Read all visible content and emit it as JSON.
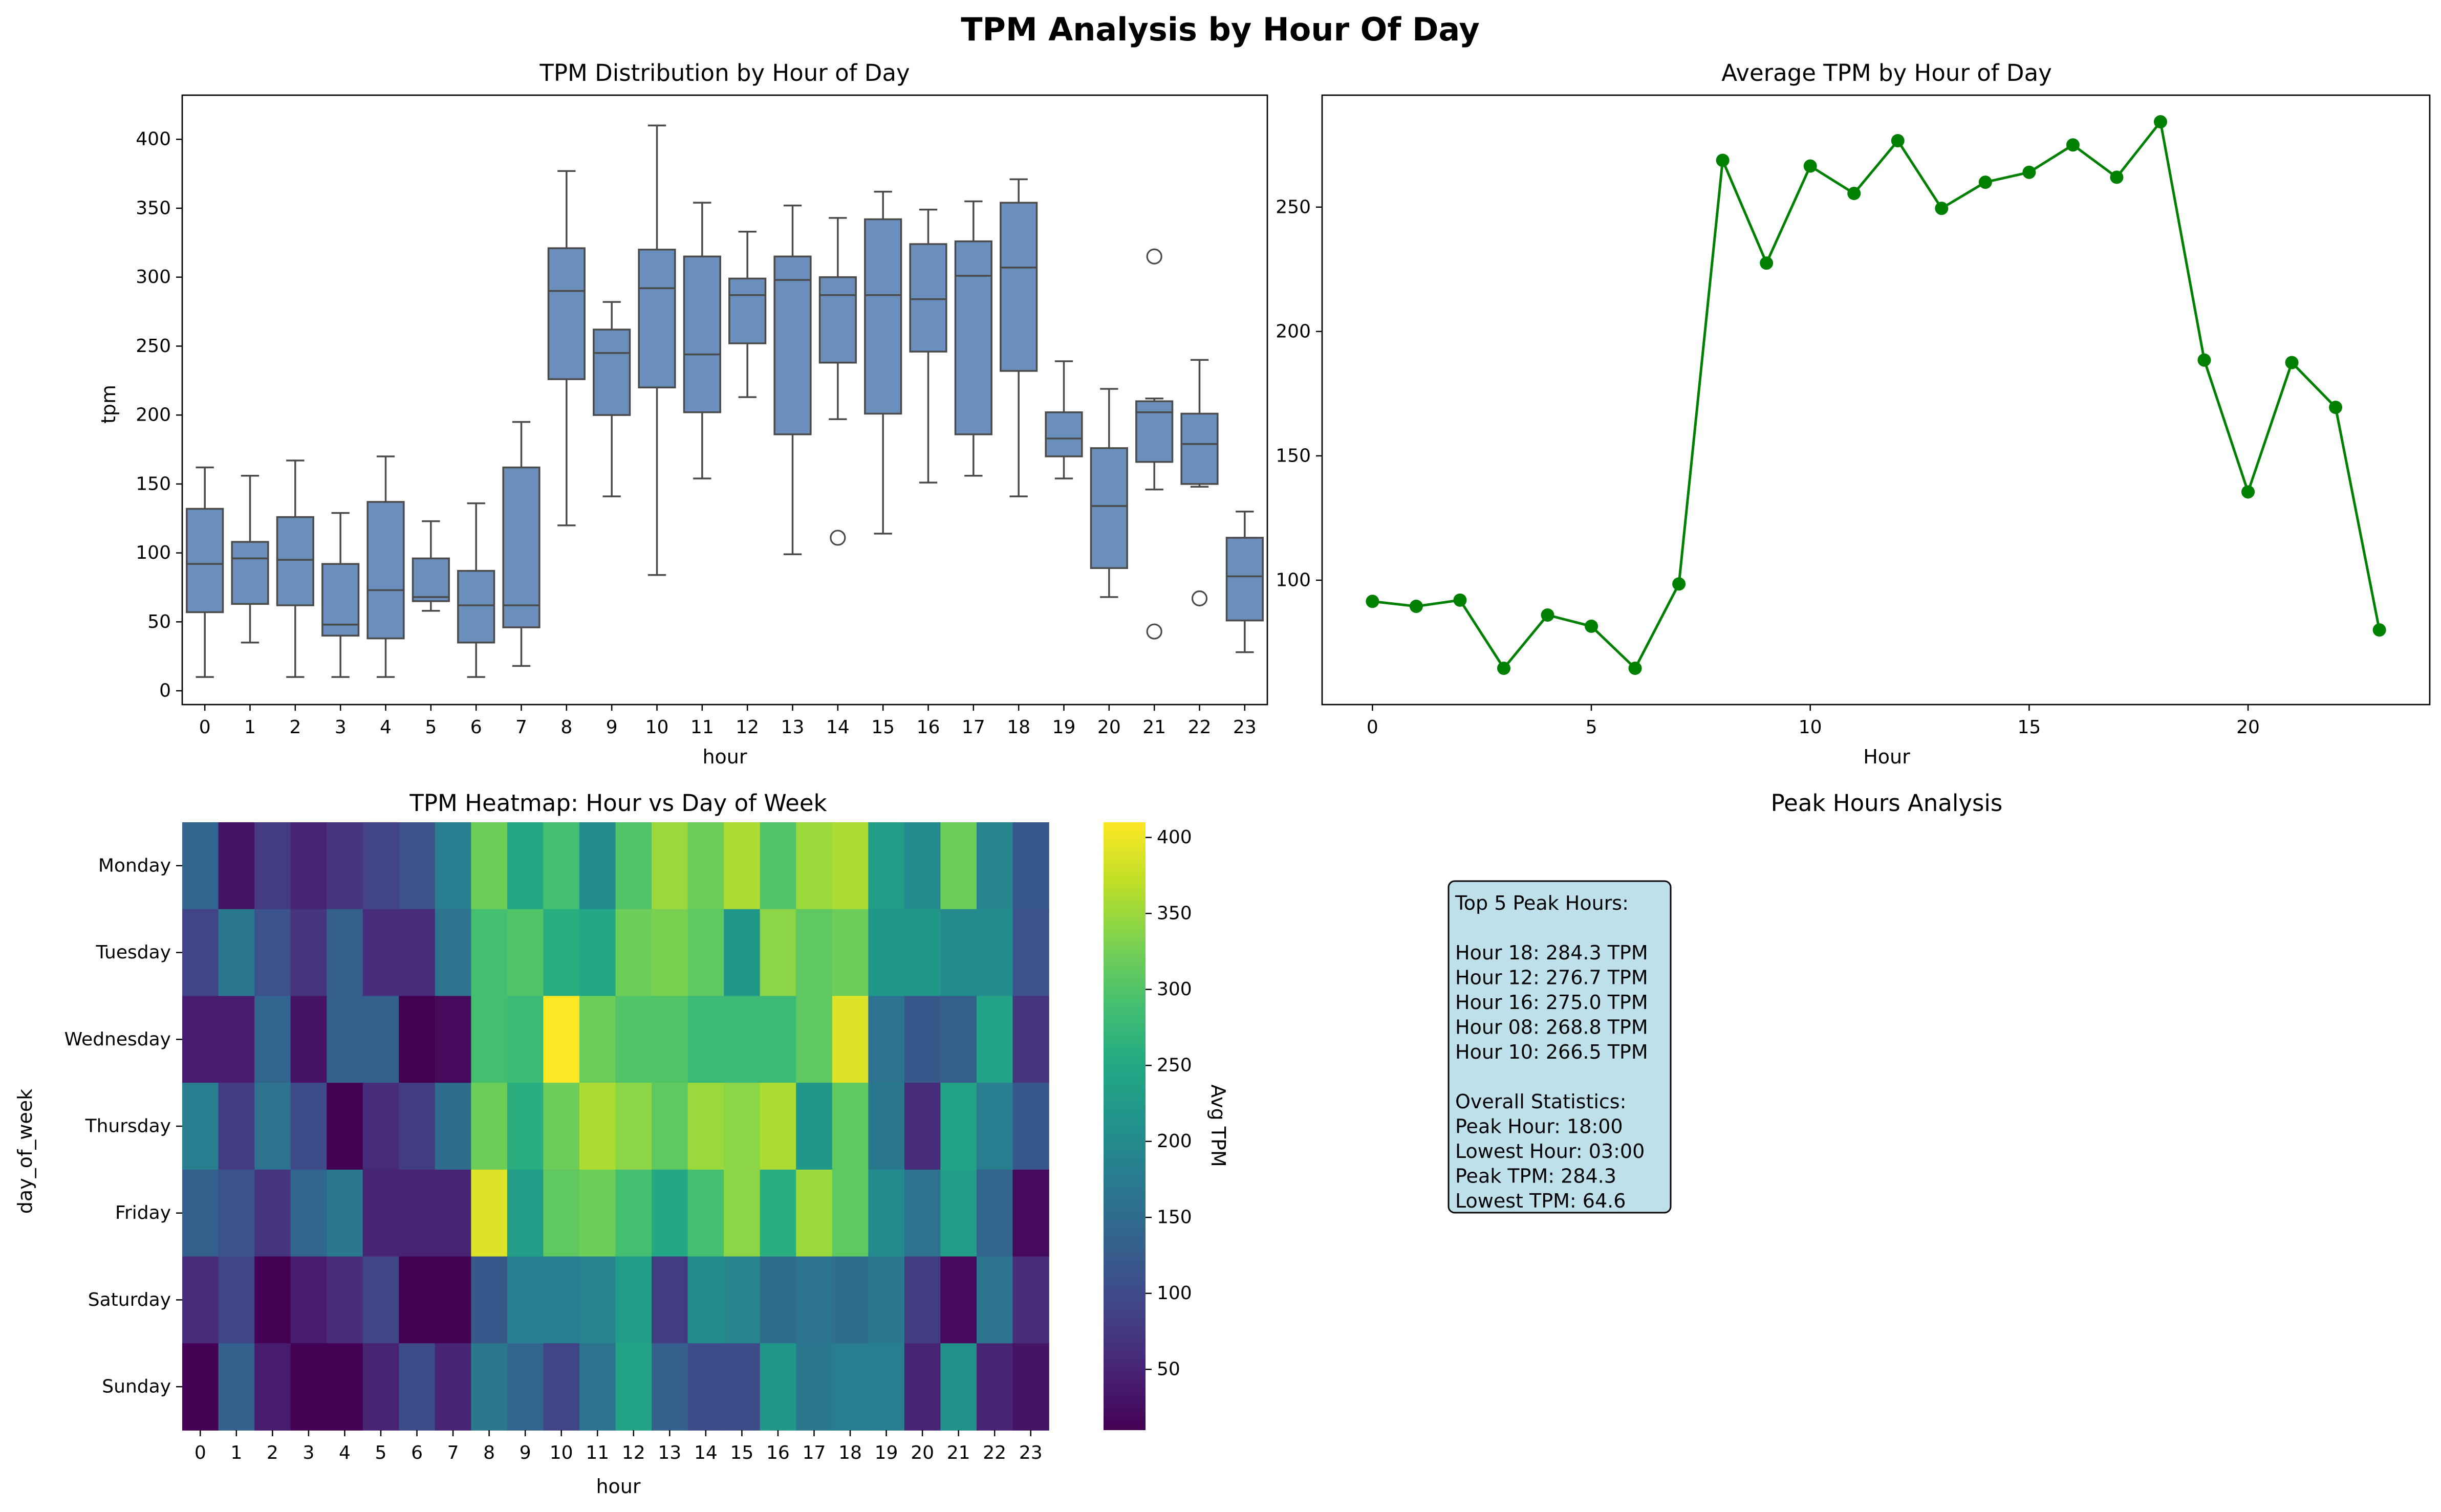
{
  "figure": {
    "title": "TPM Analysis by Hour Of Day"
  },
  "colors": {
    "box_fill": "#6a8fbd",
    "box_edge": "#4a4a4a",
    "line": "#008000",
    "stats_box": "#add8e6",
    "colormap": "viridis"
  },
  "chart_data": [
    {
      "type": "box",
      "title": "TPM Distribution by Hour of Day",
      "xlabel": "hour",
      "ylabel": "tpm",
      "ylim": [
        -10,
        432
      ],
      "yticks": [
        0,
        50,
        100,
        150,
        200,
        250,
        300,
        350,
        400
      ],
      "categories": [
        "0",
        "1",
        "2",
        "3",
        "4",
        "5",
        "6",
        "7",
        "8",
        "9",
        "10",
        "11",
        "12",
        "13",
        "14",
        "15",
        "16",
        "17",
        "18",
        "19",
        "20",
        "21",
        "22",
        "23"
      ],
      "boxes": [
        {
          "min": 10,
          "q1": 57,
          "median": 92,
          "q3": 132,
          "max": 162,
          "outliers": []
        },
        {
          "min": 35,
          "q1": 63,
          "median": 96,
          "q3": 108,
          "max": 156,
          "outliers": []
        },
        {
          "min": 10,
          "q1": 62,
          "median": 95,
          "q3": 126,
          "max": 167,
          "outliers": []
        },
        {
          "min": 10,
          "q1": 40,
          "median": 48,
          "q3": 92,
          "max": 129,
          "outliers": []
        },
        {
          "min": 10,
          "q1": 38,
          "median": 73,
          "q3": 137,
          "max": 170,
          "outliers": []
        },
        {
          "min": 58,
          "q1": 65,
          "median": 68,
          "q3": 96,
          "max": 123,
          "outliers": []
        },
        {
          "min": 10,
          "q1": 35,
          "median": 62,
          "q3": 87,
          "max": 136,
          "outliers": []
        },
        {
          "min": 18,
          "q1": 46,
          "median": 62,
          "q3": 162,
          "max": 195,
          "outliers": []
        },
        {
          "min": 120,
          "q1": 226,
          "median": 290,
          "q3": 321,
          "max": 377,
          "outliers": []
        },
        {
          "min": 141,
          "q1": 200,
          "median": 245,
          "q3": 262,
          "max": 282,
          "outliers": []
        },
        {
          "min": 84,
          "q1": 220,
          "median": 292,
          "q3": 320,
          "max": 410,
          "outliers": []
        },
        {
          "min": 154,
          "q1": 202,
          "median": 244,
          "q3": 315,
          "max": 354,
          "outliers": []
        },
        {
          "min": 213,
          "q1": 252,
          "median": 287,
          "q3": 299,
          "max": 333,
          "outliers": []
        },
        {
          "min": 99,
          "q1": 186,
          "median": 298,
          "q3": 315,
          "max": 352,
          "outliers": []
        },
        {
          "min": 197,
          "q1": 238,
          "median": 287,
          "q3": 300,
          "max": 343,
          "outliers": [
            111
          ]
        },
        {
          "min": 114,
          "q1": 201,
          "median": 287,
          "q3": 342,
          "max": 362,
          "outliers": []
        },
        {
          "min": 151,
          "q1": 246,
          "median": 284,
          "q3": 324,
          "max": 349,
          "outliers": []
        },
        {
          "min": 156,
          "q1": 186,
          "median": 301,
          "q3": 326,
          "max": 355,
          "outliers": []
        },
        {
          "min": 141,
          "q1": 232,
          "median": 307,
          "q3": 354,
          "max": 371,
          "outliers": []
        },
        {
          "min": 154,
          "q1": 170,
          "median": 183,
          "q3": 202,
          "max": 239,
          "outliers": []
        },
        {
          "min": 68,
          "q1": 89,
          "median": 134,
          "q3": 176,
          "max": 219,
          "outliers": []
        },
        {
          "min": 146,
          "q1": 166,
          "median": 202,
          "q3": 210,
          "max": 212,
          "outliers": [
            315,
            43
          ]
        },
        {
          "min": 148,
          "q1": 150,
          "median": 179,
          "q3": 201,
          "max": 240,
          "outliers": [
            67
          ]
        },
        {
          "min": 28,
          "q1": 51,
          "median": 83,
          "q3": 111,
          "max": 130,
          "outliers": []
        }
      ]
    },
    {
      "type": "line",
      "title": "Average TPM by Hour of Day",
      "xlabel": "Hour",
      "ylabel": "",
      "xlim": [
        -1.15,
        24.15
      ],
      "ylim": [
        50,
        295
      ],
      "xticks": [
        0,
        5,
        10,
        15,
        20
      ],
      "yticks": [
        100,
        150,
        200,
        250
      ],
      "x": [
        0,
        1,
        2,
        3,
        4,
        5,
        6,
        7,
        8,
        9,
        10,
        11,
        12,
        13,
        14,
        15,
        16,
        17,
        18,
        19,
        20,
        21,
        22,
        23
      ],
      "y": [
        91.5,
        89.5,
        92.0,
        64.6,
        86.0,
        81.5,
        64.6,
        98.5,
        268.8,
        227.5,
        266.5,
        255.5,
        276.7,
        249.5,
        260.0,
        264.0,
        275.0,
        262.0,
        284.3,
        188.5,
        135.5,
        187.5,
        169.5,
        80.0
      ]
    },
    {
      "type": "heatmap",
      "title": "TPM Heatmap: Hour vs Day of Week",
      "xlabel": "hour",
      "ylabel": "day_of_week",
      "colorbar_label": "Avg TPM",
      "colorbar_ticks": [
        50,
        100,
        150,
        200,
        250,
        300,
        350,
        400
      ],
      "vmin": 10,
      "vmax": 410,
      "x_labels": [
        "0",
        "1",
        "2",
        "3",
        "4",
        "5",
        "6",
        "7",
        "8",
        "9",
        "10",
        "11",
        "12",
        "13",
        "14",
        "15",
        "16",
        "17",
        "18",
        "19",
        "20",
        "21",
        "22",
        "23"
      ],
      "y_labels": [
        "Monday",
        "Tuesday",
        "Wednesday",
        "Thursday",
        "Friday",
        "Saturday",
        "Sunday"
      ],
      "values": [
        [
          140,
          30,
          80,
          50,
          70,
          90,
          110,
          180,
          320,
          250,
          290,
          200,
          300,
          350,
          320,
          360,
          300,
          350,
          360,
          230,
          200,
          320,
          190,
          120
        ],
        [
          90,
          170,
          110,
          70,
          130,
          60,
          60,
          160,
          290,
          300,
          260,
          250,
          320,
          330,
          310,
          220,
          340,
          310,
          320,
          220,
          220,
          200,
          200,
          110
        ],
        [
          40,
          40,
          140,
          30,
          130,
          130,
          10,
          20,
          290,
          280,
          410,
          320,
          300,
          300,
          280,
          280,
          280,
          310,
          390,
          160,
          120,
          130,
          240,
          70
        ],
        [
          180,
          80,
          160,
          100,
          10,
          60,
          80,
          150,
          320,
          260,
          320,
          360,
          340,
          310,
          350,
          340,
          360,
          220,
          310,
          170,
          60,
          240,
          180,
          120
        ],
        [
          130,
          110,
          70,
          140,
          170,
          50,
          50,
          50,
          390,
          230,
          310,
          320,
          290,
          250,
          290,
          340,
          260,
          350,
          310,
          200,
          160,
          230,
          140,
          20
        ],
        [
          60,
          90,
          10,
          40,
          60,
          90,
          10,
          10,
          120,
          180,
          180,
          190,
          230,
          80,
          200,
          190,
          150,
          160,
          150,
          170,
          80,
          20,
          160,
          60
        ],
        [
          10,
          130,
          40,
          10,
          10,
          50,
          100,
          50,
          170,
          140,
          90,
          160,
          240,
          130,
          100,
          100,
          220,
          170,
          180,
          180,
          50,
          210,
          50,
          30
        ]
      ]
    }
  ],
  "stats_panel": {
    "title": "Peak Hours Analysis",
    "lines": [
      "Top 5 Peak Hours:",
      "",
      "Hour 18: 284.3 TPM",
      "Hour 12: 276.7 TPM",
      "Hour 16: 275.0 TPM",
      "Hour 08: 268.8 TPM",
      "Hour 10: 266.5 TPM",
      "",
      "Overall Statistics:",
      "Peak Hour: 18:00",
      "Lowest Hour: 03:00",
      "Peak TPM: 284.3",
      "Lowest TPM: 64.6"
    ]
  }
}
